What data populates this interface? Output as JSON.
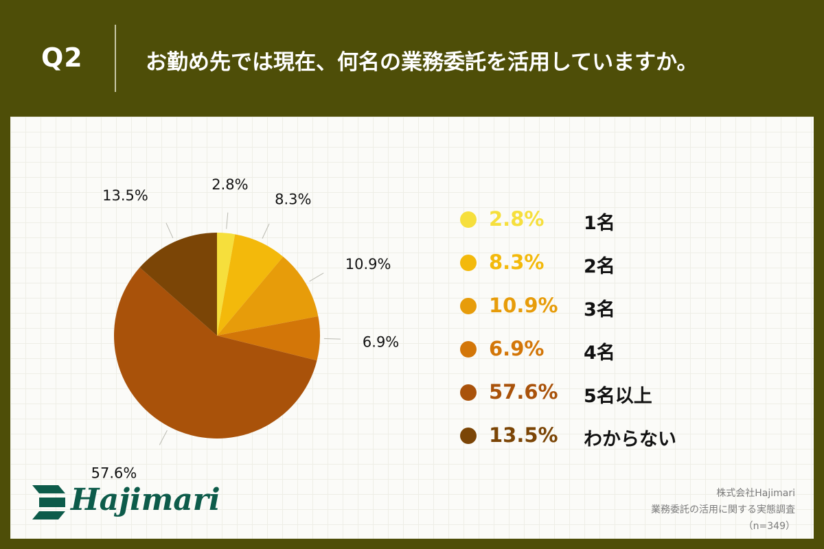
{
  "header": {
    "question_number": "Q2",
    "question_text": "お勤め先では現在、何名の業務委託を活用していますか。"
  },
  "chart_data": {
    "type": "pie",
    "categories": [
      "1名",
      "2名",
      "3名",
      "4名",
      "5名以上",
      "わからない"
    ],
    "values": [
      2.8,
      8.3,
      10.9,
      6.9,
      57.6,
      13.5
    ],
    "labels": [
      "2.8%",
      "8.3%",
      "10.9%",
      "6.9%",
      "57.6%",
      "13.5%"
    ],
    "colors": [
      "#f6df3c",
      "#f3b90b",
      "#e79c0a",
      "#d37608",
      "#a9520a",
      "#7b4506"
    ],
    "legend_position": "right",
    "start_angle": "top, clockwise"
  },
  "logo": {
    "text": "Hajimari"
  },
  "source": {
    "company": "株式会社Hajimari",
    "survey": "業務委託の活用に関する実態調査",
    "sample": "（n=349）"
  }
}
